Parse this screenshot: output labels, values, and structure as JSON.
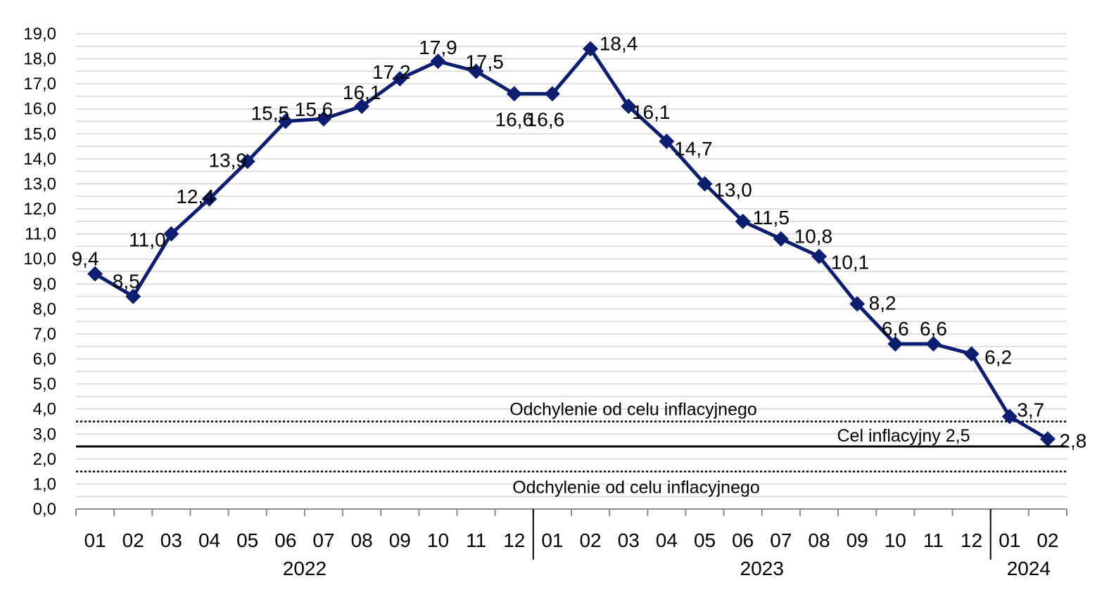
{
  "chart_data": {
    "type": "line",
    "categories": [
      "01",
      "02",
      "03",
      "04",
      "05",
      "06",
      "07",
      "08",
      "09",
      "10",
      "11",
      "12",
      "01",
      "02",
      "03",
      "04",
      "05",
      "06",
      "07",
      "08",
      "09",
      "10",
      "11",
      "12",
      "01",
      "02"
    ],
    "years": [
      {
        "label": "2022",
        "months": 12
      },
      {
        "label": "2023",
        "months": 12
      },
      {
        "label": "2024",
        "months": 2
      }
    ],
    "series": [
      {
        "values": [
          9.4,
          8.5,
          11.0,
          12.4,
          13.9,
          15.5,
          15.6,
          16.1,
          17.2,
          17.9,
          17.5,
          16.6,
          16.6,
          18.4,
          16.1,
          14.7,
          13.0,
          11.5,
          10.8,
          10.1,
          8.2,
          6.6,
          6.6,
          6.2,
          3.7,
          2.8
        ],
        "color": "#0d1e70"
      }
    ],
    "data_labels": [
      "9,4",
      "8,5",
      "11,0",
      "12,4",
      "13,9",
      "15,5",
      "15,6",
      "16,1",
      "17,2",
      "17,9",
      "17,5",
      "16,6",
      "16,6",
      "18,4",
      "16,1",
      "14,7",
      "13,0",
      "11,5",
      "10,8",
      "10,1",
      "8,2",
      "6,6",
      "6,6",
      "6,2",
      "3,7",
      "2,8"
    ],
    "y_ticks": [
      "0,0",
      "1,0",
      "2,0",
      "3,0",
      "4,0",
      "5,0",
      "6,0",
      "7,0",
      "8,0",
      "9,0",
      "10,0",
      "11,0",
      "12,0",
      "13,0",
      "14,0",
      "15,0",
      "16,0",
      "17,0",
      "18,0",
      "19,0"
    ],
    "ylim": [
      0,
      19
    ],
    "grid": true,
    "reference_lines": [
      {
        "value": 2.5,
        "style": "solid",
        "label": "Cel inflacyjny 2,5"
      },
      {
        "value": 3.5,
        "style": "dotted",
        "label": "Odchylenie od celu inflacyjnego"
      },
      {
        "value": 1.5,
        "style": "dotted",
        "label": "Odchylenie od celu inflacyjnego"
      }
    ],
    "title": "",
    "xlabel": "",
    "ylabel": ""
  }
}
